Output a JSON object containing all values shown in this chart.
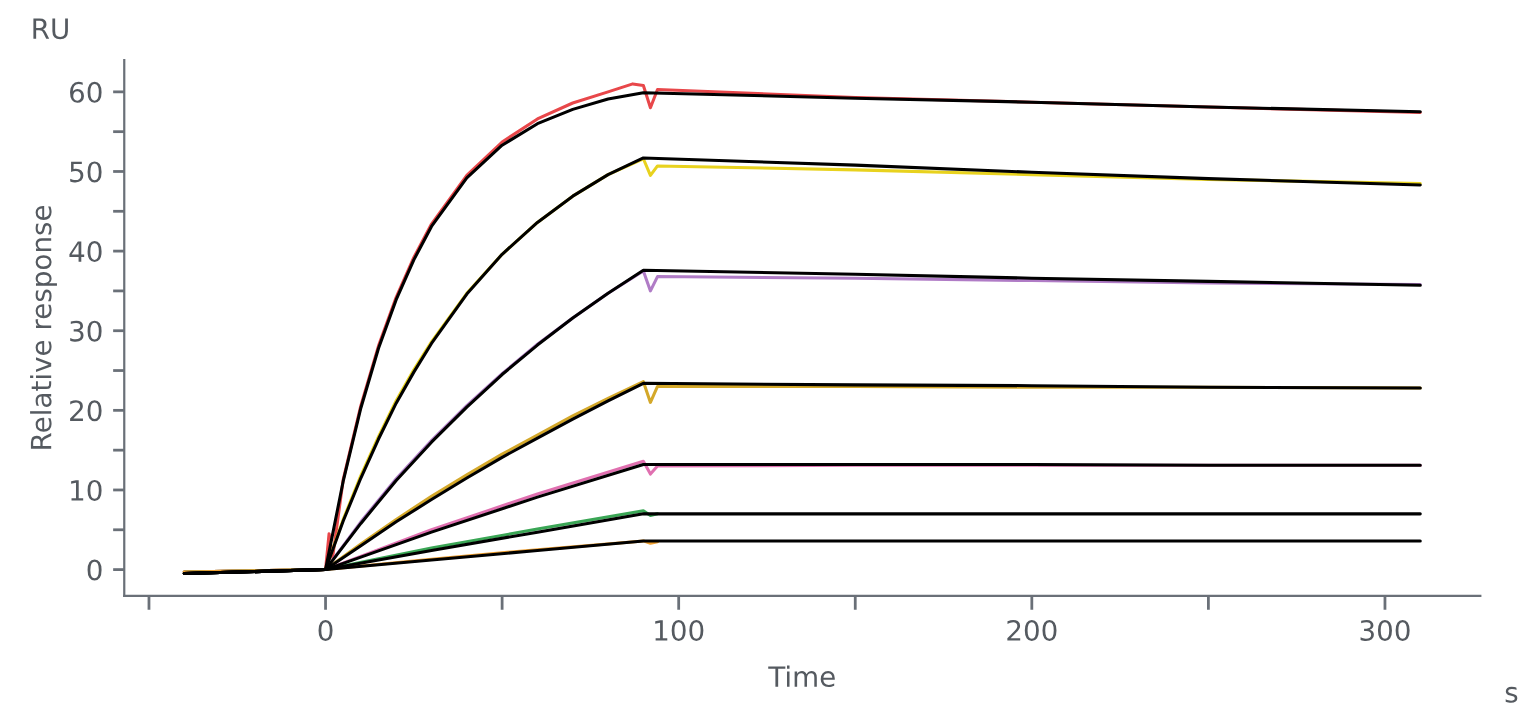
{
  "chart_data": {
    "type": "line",
    "xlabel": "Time",
    "ylabel": "Relative response",
    "annotations": [
      "RU",
      "s"
    ],
    "xlim": [
      -57,
      327
    ],
    "ylim": [
      -3.3,
      64
    ],
    "xticks": [
      {
        "value": -50,
        "label": null
      },
      0,
      {
        "value": 50,
        "label": null
      },
      100,
      {
        "value": 150,
        "label": null
      },
      200,
      {
        "value": 250,
        "label": null
      },
      300
    ],
    "yticks": [
      0,
      {
        "value": 5,
        "label": null
      },
      10,
      {
        "value": 15,
        "label": null
      },
      20,
      {
        "value": 25,
        "label": null
      },
      30,
      {
        "value": 35,
        "label": null
      },
      40,
      {
        "value": 45,
        "label": null
      },
      50,
      {
        "value": 55,
        "label": null
      },
      60
    ],
    "grid": false,
    "marker": "none",
    "line_style": "solid",
    "series": [
      {
        "color": "#e8474a",
        "x": [
          -40,
          0,
          1,
          2,
          5,
          10,
          15,
          20,
          25,
          30,
          40,
          50,
          60,
          70,
          80,
          87,
          90,
          92,
          94,
          150,
          200,
          250,
          310
        ],
        "values": [
          -0.3,
          0,
          4.5,
          1.5,
          11.3,
          20.6,
          28.1,
          34.2,
          39.2,
          43.4,
          49.5,
          53.7,
          56.6,
          58.6,
          60.0,
          61.0,
          60.8,
          58.0,
          60.3,
          59.3,
          58.7,
          58.1,
          57.4
        ]
      },
      {
        "color": "#e8d21e",
        "x": [
          -40,
          0,
          5,
          10,
          15,
          20,
          25,
          30,
          40,
          50,
          60,
          70,
          80,
          90,
          92,
          94,
          150,
          200,
          250,
          310
        ],
        "values": [
          -0.3,
          0,
          6.3,
          11.8,
          16.7,
          21.2,
          25.1,
          28.6,
          34.7,
          39.6,
          43.6,
          46.9,
          49.6,
          51.6,
          49.5,
          50.7,
          50.2,
          49.6,
          49.0,
          48.5
        ]
      },
      {
        "color": "#b07cc6",
        "x": [
          -40,
          0,
          10,
          20,
          30,
          40,
          50,
          60,
          70,
          80,
          90,
          92,
          94,
          150,
          200,
          250,
          310
        ],
        "values": [
          -0.3,
          0,
          6.0,
          11.4,
          16.2,
          20.6,
          24.6,
          28.3,
          31.6,
          34.7,
          37.5,
          35.0,
          36.8,
          36.6,
          36.3,
          36.0,
          35.8
        ]
      },
      {
        "color": "#d4a82a",
        "x": [
          -40,
          0,
          10,
          20,
          30,
          40,
          50,
          60,
          70,
          80,
          90,
          92,
          94,
          150,
          200,
          250,
          310
        ],
        "values": [
          -0.3,
          0,
          3.2,
          6.3,
          9.2,
          11.9,
          14.5,
          16.9,
          19.3,
          21.5,
          23.6,
          21.0,
          23.0,
          23.0,
          22.9,
          22.9,
          22.8
        ]
      },
      {
        "color": "#e070b0",
        "x": [
          -40,
          0,
          30,
          60,
          90,
          92,
          94,
          150,
          200,
          250,
          310
        ],
        "values": [
          -0.3,
          0,
          5.0,
          9.5,
          13.6,
          12.0,
          13.0,
          13.1,
          13.1,
          13.1,
          13.1
        ]
      },
      {
        "color": "#3aa655",
        "x": [
          -40,
          0,
          30,
          60,
          90,
          92,
          94
        ],
        "values": [
          -0.3,
          0,
          2.7,
          5.1,
          7.4,
          6.8,
          7.0
        ]
      },
      {
        "color": "#f0a030",
        "x": [
          -40,
          0,
          30,
          60,
          90,
          92,
          94
        ],
        "values": [
          -0.3,
          0,
          1.3,
          2.5,
          3.6,
          3.3,
          3.5
        ]
      },
      {
        "color": "#000000",
        "x": [
          -40,
          0,
          5,
          10,
          15,
          20,
          25,
          30,
          40,
          50,
          60,
          70,
          80,
          90,
          150,
          200,
          250,
          310
        ],
        "values": [
          -0.5,
          0,
          11.1,
          20.3,
          27.8,
          33.9,
          38.9,
          43.1,
          49.2,
          53.3,
          56.0,
          57.8,
          59.1,
          59.9,
          59.2,
          58.7,
          58.1,
          57.5
        ]
      },
      {
        "color": "#000000",
        "x": [
          -40,
          0,
          5,
          10,
          15,
          20,
          25,
          30,
          40,
          50,
          60,
          70,
          80,
          90,
          150,
          200,
          250,
          310
        ],
        "values": [
          -0.5,
          0,
          6.1,
          11.5,
          16.4,
          20.9,
          24.8,
          28.4,
          34.6,
          39.6,
          43.6,
          46.9,
          49.6,
          51.7,
          50.8,
          49.9,
          49.1,
          48.3
        ]
      },
      {
        "color": "#000000",
        "x": [
          -40,
          0,
          10,
          20,
          30,
          40,
          50,
          60,
          70,
          80,
          90,
          150,
          200,
          250,
          310
        ],
        "values": [
          -0.5,
          0,
          5.8,
          11.2,
          16.0,
          20.4,
          24.5,
          28.2,
          31.6,
          34.7,
          37.6,
          37.1,
          36.6,
          36.2,
          35.7
        ]
      },
      {
        "color": "#000000",
        "x": [
          -40,
          0,
          10,
          20,
          30,
          40,
          50,
          60,
          70,
          80,
          90,
          150,
          200,
          250,
          310
        ],
        "values": [
          -0.5,
          0,
          3.0,
          6.0,
          8.8,
          11.5,
          14.1,
          16.5,
          18.9,
          21.2,
          23.4,
          23.2,
          23.1,
          22.9,
          22.8
        ]
      },
      {
        "color": "#000000",
        "x": [
          -40,
          0,
          30,
          60,
          90,
          150,
          200,
          250,
          310
        ],
        "values": [
          -0.5,
          0,
          4.7,
          9.1,
          13.2,
          13.2,
          13.2,
          13.1,
          13.1
        ]
      },
      {
        "color": "#000000",
        "x": [
          -40,
          0,
          30,
          60,
          90,
          150,
          200,
          250,
          310
        ],
        "values": [
          -0.5,
          0,
          2.4,
          4.7,
          7.0,
          7.0,
          7.0,
          7.0,
          7.0
        ]
      },
      {
        "color": "#000000",
        "x": [
          -40,
          0,
          30,
          60,
          90,
          150,
          200,
          250,
          310
        ],
        "values": [
          -0.5,
          0,
          1.2,
          2.4,
          3.6,
          3.6,
          3.6,
          3.6,
          3.6
        ]
      }
    ]
  }
}
